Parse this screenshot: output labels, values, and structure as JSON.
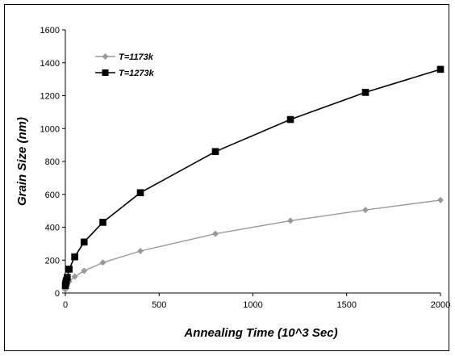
{
  "chart_data": {
    "type": "line",
    "title": "",
    "xlabel": "Annealing Time (10^3 Sec)",
    "ylabel": "Grain Size (nm)",
    "xlim": [
      0,
      2000
    ],
    "ylim": [
      0,
      1600
    ],
    "xticks": [
      0,
      500,
      1000,
      1500,
      2000
    ],
    "yticks": [
      0,
      200,
      400,
      600,
      800,
      1000,
      1200,
      1400,
      1600
    ],
    "grid": false,
    "legend_position": "top-left",
    "series": [
      {
        "name": "T=1173k",
        "color": "#999999",
        "marker": "diamond",
        "x": [
          0,
          2,
          5,
          10,
          20,
          50,
          100,
          200,
          400,
          800,
          1200,
          1600,
          2000
        ],
        "y": [
          20,
          30,
          40,
          50,
          70,
          100,
          135,
          185,
          255,
          360,
          440,
          505,
          565
        ]
      },
      {
        "name": "T=1273k",
        "color": "#000000",
        "marker": "square",
        "x": [
          0,
          2,
          5,
          10,
          20,
          50,
          100,
          200,
          400,
          800,
          1200,
          1600,
          2000
        ],
        "y": [
          45,
          60,
          75,
          95,
          145,
          220,
          310,
          430,
          610,
          860,
          1055,
          1220,
          1360
        ]
      }
    ]
  }
}
